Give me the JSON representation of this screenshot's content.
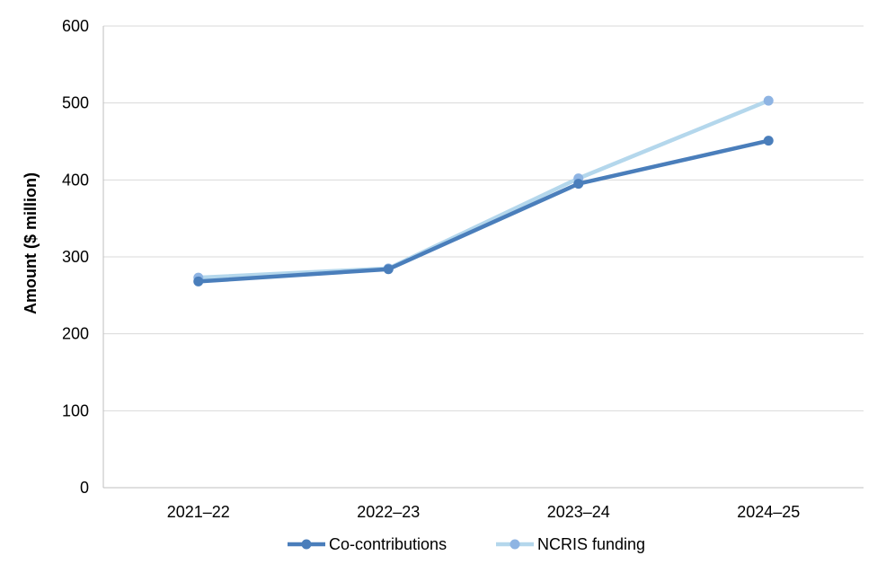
{
  "chart_data": {
    "type": "line",
    "title": "",
    "xlabel": "",
    "ylabel": "Amount ($ million)",
    "categories": [
      "2021–22",
      "2022–23",
      "2023–24",
      "2024–25"
    ],
    "ylim": [
      0,
      600
    ],
    "yticks": [
      0,
      100,
      200,
      300,
      400,
      500,
      600
    ],
    "grid": true,
    "legend_position": "bottom",
    "series": [
      {
        "name": "Co-contributions",
        "values": [
          268,
          284,
          395,
          451
        ],
        "line_color": "#4A7EBB",
        "marker_color": "#4A7EBB"
      },
      {
        "name": "NCRIS funding",
        "values": [
          273,
          285,
          402,
          503
        ],
        "line_color": "#B4D7EC",
        "marker_color": "#8EB4E3"
      }
    ]
  }
}
